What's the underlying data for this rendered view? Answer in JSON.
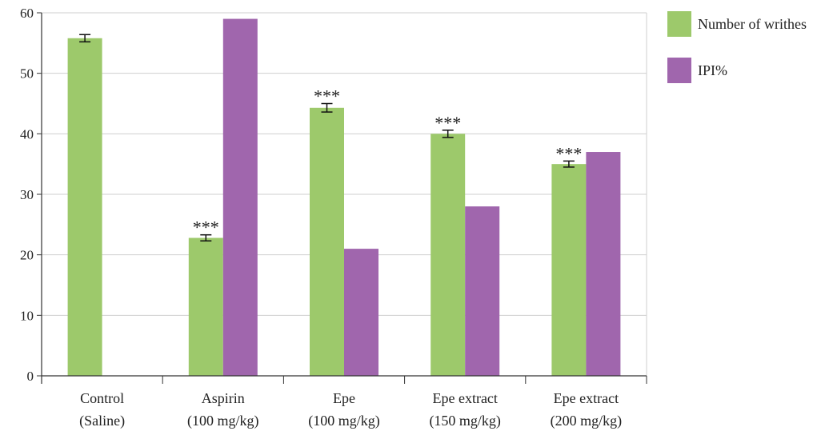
{
  "chart_data": {
    "type": "bar",
    "categories": [
      [
        "Control",
        "(Saline)"
      ],
      [
        "Aspirin",
        "(100 mg/kg)"
      ],
      [
        "Epe",
        "(100 mg/kg)"
      ],
      [
        "Epe extract",
        "(150 mg/kg)"
      ],
      [
        "Epe extract",
        "(200 mg/kg)"
      ]
    ],
    "series": [
      {
        "name": "Number of writhes",
        "color": "#9dc96b",
        "values": [
          55.8,
          22.8,
          44.3,
          40.0,
          35.0
        ],
        "errors": [
          0.6,
          0.5,
          0.7,
          0.6,
          0.5
        ],
        "significance": [
          "",
          "***",
          "***",
          "***",
          "***"
        ]
      },
      {
        "name": "IPI%",
        "color": "#a066ad",
        "values": [
          null,
          59,
          21,
          28,
          37
        ]
      }
    ],
    "ylim": [
      0,
      60
    ],
    "yticks": [
      0,
      10,
      20,
      30,
      40,
      50,
      60
    ],
    "grid": true,
    "legend_position": "top-right",
    "title": "",
    "xlabel": "",
    "ylabel": ""
  }
}
